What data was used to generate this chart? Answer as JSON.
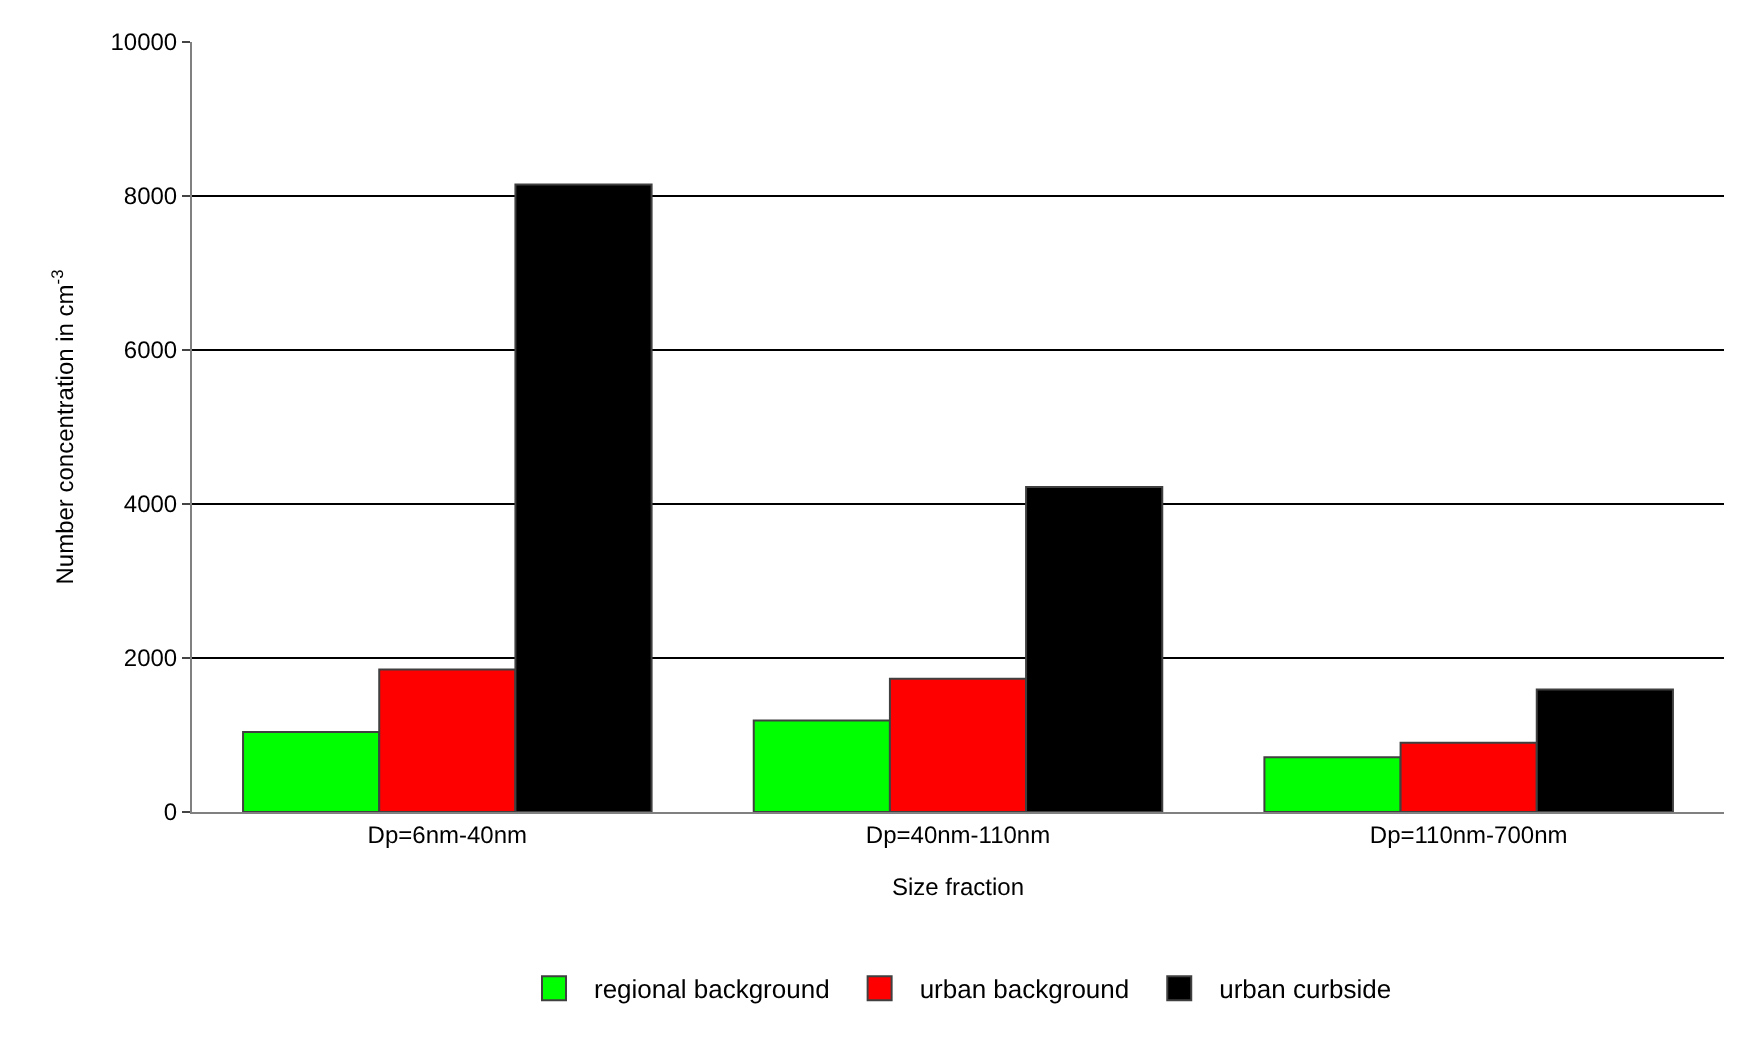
{
  "chart_data": {
    "type": "bar",
    "xlabel": "Size fraction",
    "ylabel": "Number concentration in cm$^{-3}$",
    "categories": [
      "Dp=6nm-40nm",
      "Dp=40nm-110nm",
      "Dp=110nm-700nm"
    ],
    "series": [
      {
        "name": "regional background",
        "color": "#00ff00",
        "values": [
          1040,
          1190,
          710
        ]
      },
      {
        "name": "urban background",
        "color": "#ff0000",
        "values": [
          1850,
          1730,
          900
        ]
      },
      {
        "name": "urban curbside",
        "color": "#000000",
        "values": [
          8150,
          4220,
          1590
        ]
      }
    ],
    "ylim": [
      0,
      10000
    ],
    "yticks": [
      0,
      2000,
      4000,
      6000,
      8000,
      10000
    ],
    "grid": "y",
    "legend": "bottom"
  }
}
